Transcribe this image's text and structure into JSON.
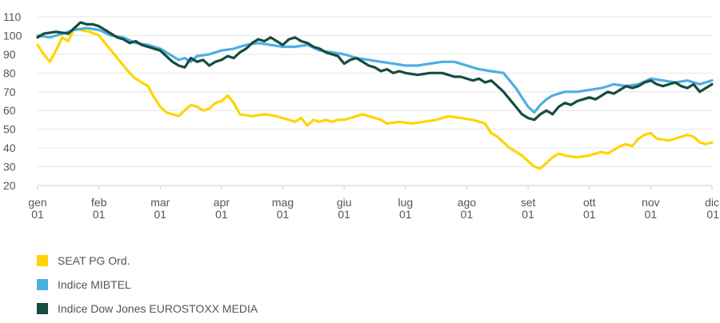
{
  "chart_data": {
    "type": "line",
    "y_ticks": [
      "20",
      "30",
      "40",
      "50",
      "60",
      "70",
      "80",
      "90",
      "100",
      "110"
    ],
    "ylim": [
      20,
      110
    ],
    "xlim": [
      0,
      11
    ],
    "x_ticks": [
      {
        "month": "gen",
        "year": "01"
      },
      {
        "month": "feb",
        "year": "01"
      },
      {
        "month": "mar",
        "year": "01"
      },
      {
        "month": "apr",
        "year": "01"
      },
      {
        "month": "mag",
        "year": "01"
      },
      {
        "month": "giu",
        "year": "01"
      },
      {
        "month": "lug",
        "year": "01"
      },
      {
        "month": "ago",
        "year": "01"
      },
      {
        "month": "set",
        "year": "01"
      },
      {
        "month": "ott",
        "year": "01"
      },
      {
        "month": "nov",
        "year": "01"
      },
      {
        "month": "dic",
        "year": "01"
      }
    ],
    "grid": true,
    "legend_position": "bottom-left",
    "series": [
      {
        "name": "SEAT PG Ord.",
        "color": "#FFD400",
        "points": [
          [
            0,
            95
          ],
          [
            0.1,
            90
          ],
          [
            0.2,
            86
          ],
          [
            0.3,
            92
          ],
          [
            0.4,
            99
          ],
          [
            0.5,
            97
          ],
          [
            0.6,
            104
          ],
          [
            0.7,
            103
          ],
          [
            0.85,
            102
          ],
          [
            1.0,
            100
          ],
          [
            1.1,
            96
          ],
          [
            1.2,
            92
          ],
          [
            1.3,
            88
          ],
          [
            1.4,
            84
          ],
          [
            1.5,
            80
          ],
          [
            1.6,
            77
          ],
          [
            1.7,
            75
          ],
          [
            1.8,
            73
          ],
          [
            1.9,
            67
          ],
          [
            2.0,
            62
          ],
          [
            2.1,
            59
          ],
          [
            2.2,
            58
          ],
          [
            2.3,
            57
          ],
          [
            2.4,
            60
          ],
          [
            2.5,
            63
          ],
          [
            2.6,
            62
          ],
          [
            2.7,
            60
          ],
          [
            2.8,
            61
          ],
          [
            2.9,
            64
          ],
          [
            3.0,
            65
          ],
          [
            3.1,
            68
          ],
          [
            3.2,
            64
          ],
          [
            3.3,
            58
          ],
          [
            3.5,
            57
          ],
          [
            3.7,
            58
          ],
          [
            3.9,
            57
          ],
          [
            4.0,
            56
          ],
          [
            4.1,
            55
          ],
          [
            4.2,
            54
          ],
          [
            4.3,
            56
          ],
          [
            4.4,
            52
          ],
          [
            4.5,
            55
          ],
          [
            4.6,
            54
          ],
          [
            4.7,
            55
          ],
          [
            4.8,
            54
          ],
          [
            4.9,
            55
          ],
          [
            5.0,
            55
          ],
          [
            5.1,
            56
          ],
          [
            5.2,
            57
          ],
          [
            5.3,
            58
          ],
          [
            5.4,
            57
          ],
          [
            5.5,
            56
          ],
          [
            5.6,
            55
          ],
          [
            5.7,
            53
          ],
          [
            5.9,
            54
          ],
          [
            6.1,
            53
          ],
          [
            6.3,
            54
          ],
          [
            6.5,
            55
          ],
          [
            6.7,
            57
          ],
          [
            6.9,
            56
          ],
          [
            7.1,
            55
          ],
          [
            7.3,
            53
          ],
          [
            7.4,
            48
          ],
          [
            7.5,
            46
          ],
          [
            7.6,
            43
          ],
          [
            7.7,
            40
          ],
          [
            7.8,
            38
          ],
          [
            7.9,
            36
          ],
          [
            8.0,
            33
          ],
          [
            8.1,
            30
          ],
          [
            8.2,
            29
          ],
          [
            8.3,
            32
          ],
          [
            8.4,
            35
          ],
          [
            8.5,
            37
          ],
          [
            8.6,
            36
          ],
          [
            8.8,
            35
          ],
          [
            9.0,
            36
          ],
          [
            9.1,
            37
          ],
          [
            9.2,
            38
          ],
          [
            9.3,
            37
          ],
          [
            9.4,
            39
          ],
          [
            9.5,
            41
          ],
          [
            9.6,
            42
          ],
          [
            9.7,
            41
          ],
          [
            9.8,
            45
          ],
          [
            9.9,
            47
          ],
          [
            10.0,
            48
          ],
          [
            10.1,
            45
          ],
          [
            10.3,
            44
          ],
          [
            10.5,
            46
          ],
          [
            10.6,
            47
          ],
          [
            10.7,
            46
          ],
          [
            10.8,
            43
          ],
          [
            10.9,
            42
          ],
          [
            11.0,
            43
          ]
        ]
      },
      {
        "name": "Indice MIBTEL",
        "color": "#4DAFE0",
        "points": [
          [
            0,
            100
          ],
          [
            0.2,
            99
          ],
          [
            0.4,
            101
          ],
          [
            0.6,
            103
          ],
          [
            0.8,
            104
          ],
          [
            1.0,
            103
          ],
          [
            1.2,
            100
          ],
          [
            1.4,
            99
          ],
          [
            1.6,
            96
          ],
          [
            1.8,
            95
          ],
          [
            2.0,
            93
          ],
          [
            2.2,
            89
          ],
          [
            2.3,
            87
          ],
          [
            2.4,
            88
          ],
          [
            2.5,
            86
          ],
          [
            2.6,
            89
          ],
          [
            2.8,
            90
          ],
          [
            3.0,
            92
          ],
          [
            3.2,
            93
          ],
          [
            3.4,
            95
          ],
          [
            3.6,
            96
          ],
          [
            3.8,
            95
          ],
          [
            4.0,
            94
          ],
          [
            4.2,
            94
          ],
          [
            4.4,
            95
          ],
          [
            4.6,
            92
          ],
          [
            4.8,
            91
          ],
          [
            5.0,
            90
          ],
          [
            5.2,
            88
          ],
          [
            5.4,
            87
          ],
          [
            5.6,
            86
          ],
          [
            5.8,
            85
          ],
          [
            6.0,
            84
          ],
          [
            6.2,
            84
          ],
          [
            6.4,
            85
          ],
          [
            6.6,
            86
          ],
          [
            6.8,
            86
          ],
          [
            7.0,
            84
          ],
          [
            7.2,
            82
          ],
          [
            7.4,
            81
          ],
          [
            7.6,
            80
          ],
          [
            7.7,
            76
          ],
          [
            7.8,
            72
          ],
          [
            7.9,
            67
          ],
          [
            8.0,
            62
          ],
          [
            8.1,
            59
          ],
          [
            8.2,
            63
          ],
          [
            8.3,
            66
          ],
          [
            8.4,
            68
          ],
          [
            8.5,
            69
          ],
          [
            8.6,
            70
          ],
          [
            8.8,
            70
          ],
          [
            9.0,
            71
          ],
          [
            9.2,
            72
          ],
          [
            9.4,
            74
          ],
          [
            9.6,
            73
          ],
          [
            9.8,
            74
          ],
          [
            10.0,
            77
          ],
          [
            10.2,
            76
          ],
          [
            10.4,
            75
          ],
          [
            10.6,
            76
          ],
          [
            10.8,
            74
          ],
          [
            11.0,
            76
          ]
        ]
      },
      {
        "name": "Indice Dow Jones EUROSTOXX MEDIA",
        "color": "#174C40",
        "points": [
          [
            0,
            99
          ],
          [
            0.1,
            101
          ],
          [
            0.3,
            102
          ],
          [
            0.5,
            101
          ],
          [
            0.6,
            104
          ],
          [
            0.7,
            107
          ],
          [
            0.8,
            106
          ],
          [
            0.9,
            106
          ],
          [
            1.0,
            105
          ],
          [
            1.1,
            103
          ],
          [
            1.2,
            101
          ],
          [
            1.3,
            99
          ],
          [
            1.4,
            98
          ],
          [
            1.5,
            96
          ],
          [
            1.6,
            97
          ],
          [
            1.7,
            95
          ],
          [
            1.8,
            94
          ],
          [
            1.9,
            93
          ],
          [
            2.0,
            92
          ],
          [
            2.1,
            89
          ],
          [
            2.2,
            86
          ],
          [
            2.3,
            84
          ],
          [
            2.4,
            83
          ],
          [
            2.5,
            88
          ],
          [
            2.6,
            86
          ],
          [
            2.7,
            87
          ],
          [
            2.8,
            84
          ],
          [
            2.9,
            86
          ],
          [
            3.0,
            87
          ],
          [
            3.1,
            89
          ],
          [
            3.2,
            88
          ],
          [
            3.3,
            91
          ],
          [
            3.4,
            93
          ],
          [
            3.5,
            96
          ],
          [
            3.6,
            98
          ],
          [
            3.7,
            97
          ],
          [
            3.8,
            99
          ],
          [
            3.9,
            97
          ],
          [
            4.0,
            95
          ],
          [
            4.1,
            98
          ],
          [
            4.2,
            99
          ],
          [
            4.3,
            97
          ],
          [
            4.4,
            96
          ],
          [
            4.5,
            94
          ],
          [
            4.6,
            93
          ],
          [
            4.7,
            91
          ],
          [
            4.8,
            90
          ],
          [
            4.9,
            89
          ],
          [
            5.0,
            85
          ],
          [
            5.1,
            87
          ],
          [
            5.2,
            88
          ],
          [
            5.3,
            86
          ],
          [
            5.4,
            84
          ],
          [
            5.5,
            83
          ],
          [
            5.6,
            81
          ],
          [
            5.7,
            82
          ],
          [
            5.8,
            80
          ],
          [
            5.9,
            81
          ],
          [
            6.0,
            80
          ],
          [
            6.2,
            79
          ],
          [
            6.4,
            80
          ],
          [
            6.6,
            80
          ],
          [
            6.8,
            78
          ],
          [
            6.9,
            78
          ],
          [
            7.0,
            77
          ],
          [
            7.1,
            76
          ],
          [
            7.2,
            77
          ],
          [
            7.3,
            75
          ],
          [
            7.4,
            76
          ],
          [
            7.5,
            73
          ],
          [
            7.6,
            70
          ],
          [
            7.7,
            66
          ],
          [
            7.8,
            62
          ],
          [
            7.9,
            58
          ],
          [
            8.0,
            56
          ],
          [
            8.1,
            55
          ],
          [
            8.2,
            58
          ],
          [
            8.3,
            60
          ],
          [
            8.4,
            58
          ],
          [
            8.5,
            62
          ],
          [
            8.6,
            64
          ],
          [
            8.7,
            63
          ],
          [
            8.8,
            65
          ],
          [
            8.9,
            66
          ],
          [
            9.0,
            67
          ],
          [
            9.1,
            66
          ],
          [
            9.2,
            68
          ],
          [
            9.3,
            70
          ],
          [
            9.4,
            69
          ],
          [
            9.5,
            71
          ],
          [
            9.6,
            73
          ],
          [
            9.7,
            72
          ],
          [
            9.8,
            73
          ],
          [
            9.9,
            75
          ],
          [
            10.0,
            76
          ],
          [
            10.1,
            74
          ],
          [
            10.2,
            73
          ],
          [
            10.3,
            74
          ],
          [
            10.4,
            75
          ],
          [
            10.5,
            73
          ],
          [
            10.6,
            72
          ],
          [
            10.7,
            74
          ],
          [
            10.8,
            70
          ],
          [
            10.9,
            72
          ],
          [
            11.0,
            74
          ]
        ]
      }
    ]
  }
}
